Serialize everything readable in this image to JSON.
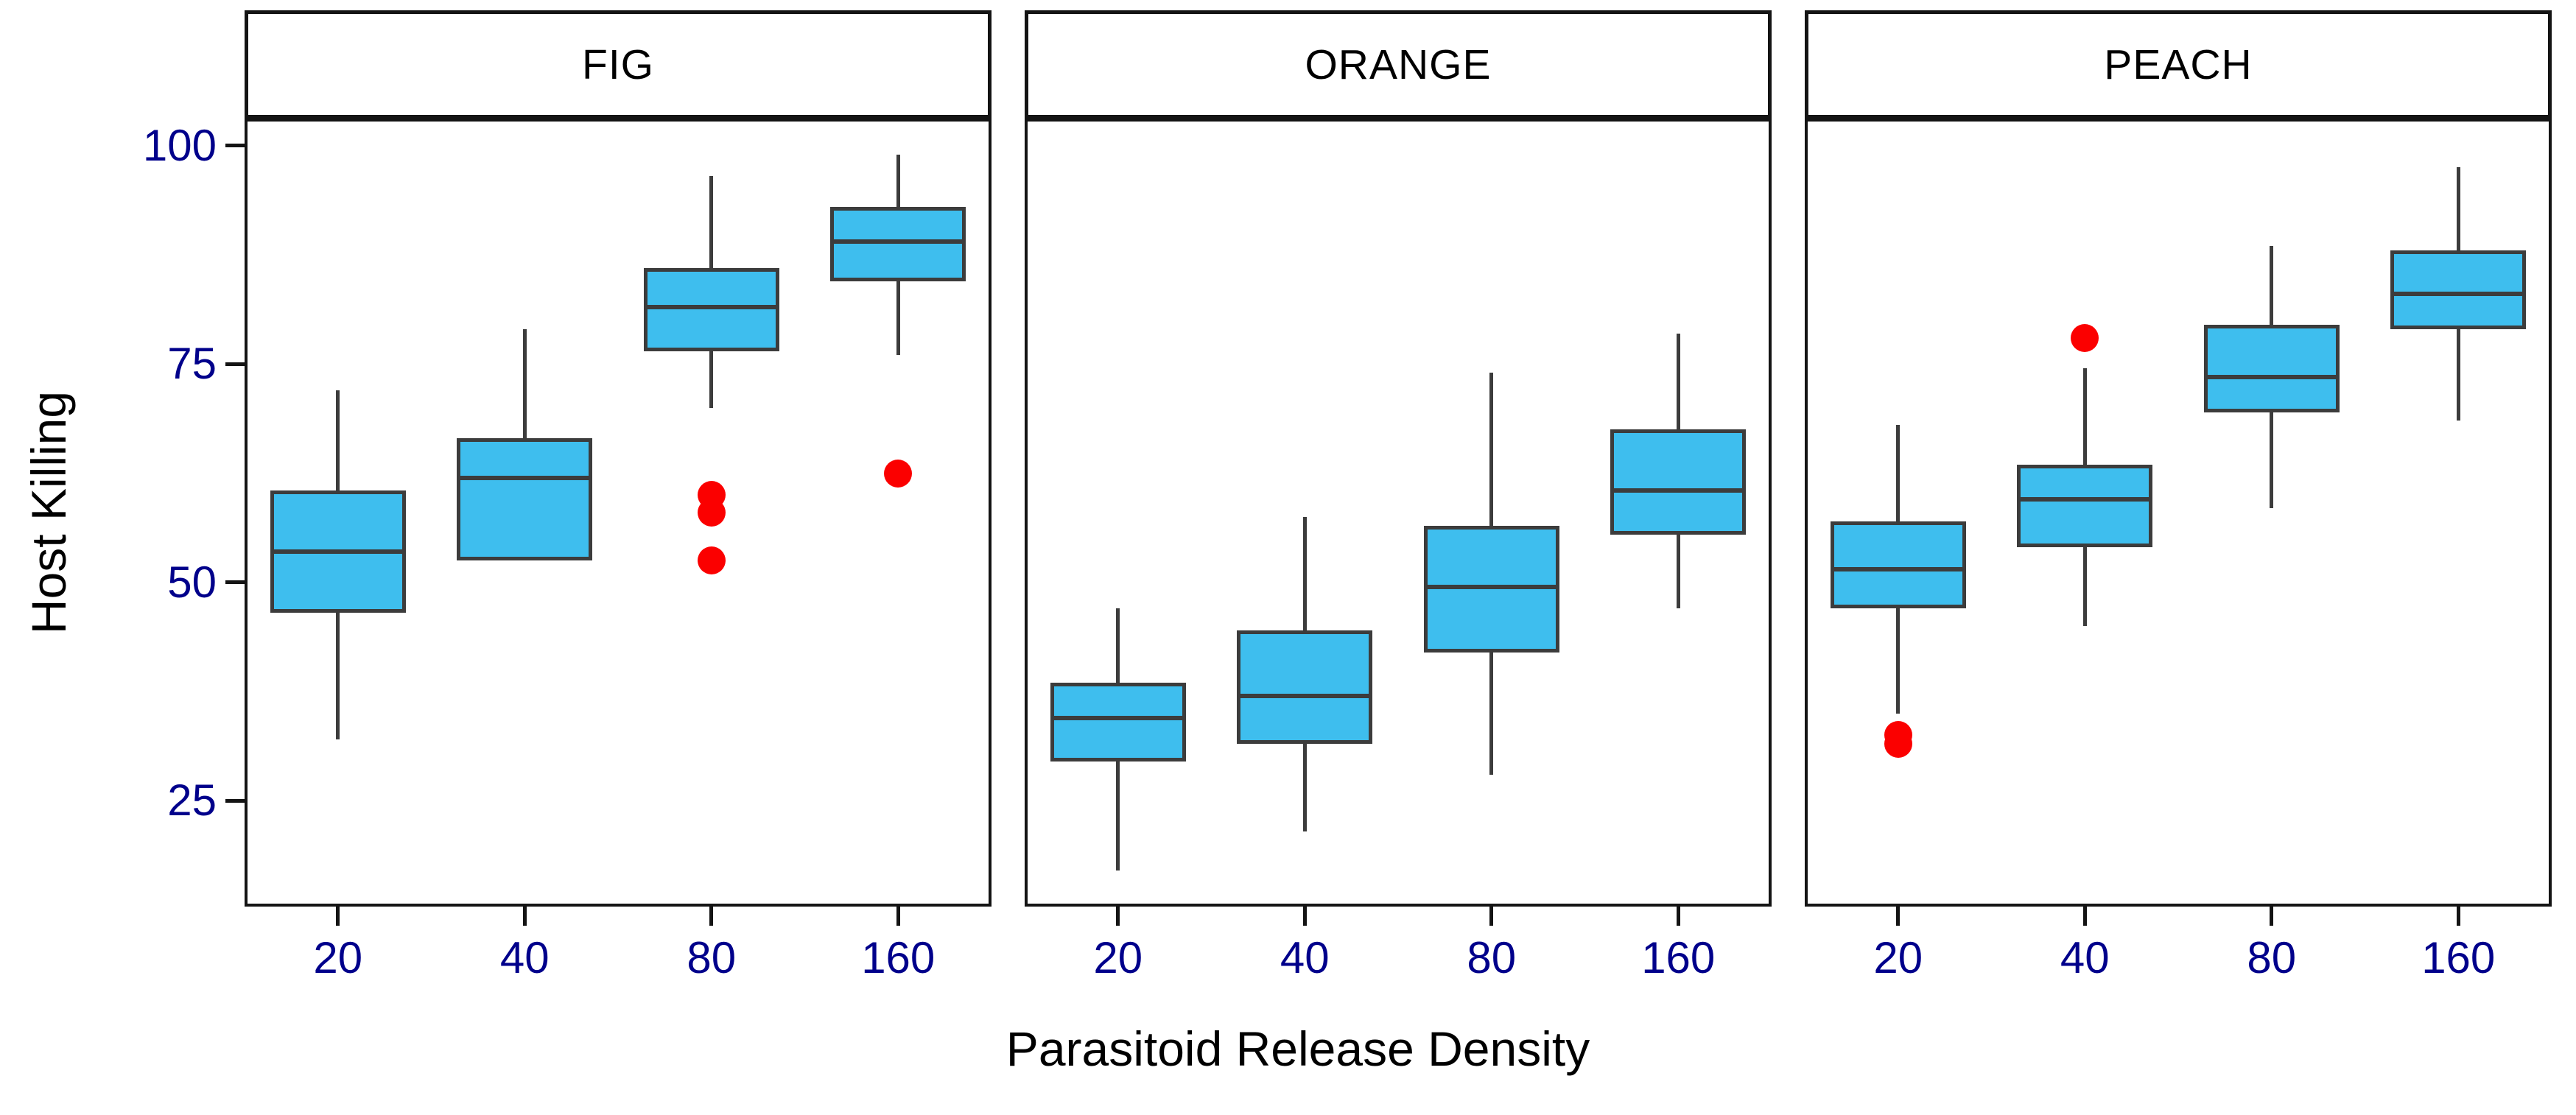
{
  "figure_title": "",
  "y_axis": {
    "label": "Host Killing",
    "tick_values": [
      100,
      75,
      50,
      25
    ],
    "domain_top": 103.1,
    "domain_bottom": 12.9
  },
  "x_axis": {
    "label": "Parasitoid Release Density",
    "tick_labels": [
      "20",
      "40",
      "80",
      "160"
    ]
  },
  "colors": {
    "box_fill": "#3EBEEE",
    "box_stroke": "#3c3c3c",
    "outlier_red": "#fb0000",
    "tick_label_blue": "#00008b",
    "panel_border": "#141414",
    "text_black": "#000000",
    "background": "#ffffff"
  },
  "chart_data": {
    "type": "boxplot",
    "title": "",
    "xlabel": "Parasitoid Release Density",
    "ylabel": "Host Killing",
    "ylim": [
      12.9,
      103.1
    ],
    "yticks": [
      25,
      50,
      75,
      100
    ],
    "categories": [
      "20",
      "40",
      "80",
      "160"
    ],
    "legend": null,
    "grid": false,
    "facets": [
      {
        "label": "FIG",
        "boxes": [
          {
            "category": "20",
            "min": 32,
            "q1": 46.5,
            "median": 53.5,
            "q3": 60.5,
            "max": 72,
            "outliers": []
          },
          {
            "category": "40",
            "min": 52.5,
            "q1": 52.5,
            "median": 62,
            "q3": 66.5,
            "max": 79,
            "outliers": []
          },
          {
            "category": "80",
            "min": 70,
            "q1": 76.5,
            "median": 81.5,
            "q3": 86,
            "max": 96.5,
            "outliers": [
              60,
              58,
              52.5
            ]
          },
          {
            "category": "160",
            "min": 76,
            "q1": 84.5,
            "median": 89,
            "q3": 93,
            "max": 99,
            "outliers": [
              62.5
            ]
          }
        ]
      },
      {
        "label": "ORANGE",
        "boxes": [
          {
            "category": "20",
            "min": 17,
            "q1": 29.5,
            "median": 34.5,
            "q3": 38.5,
            "max": 47,
            "outliers": []
          },
          {
            "category": "40",
            "min": 21.5,
            "q1": 31.5,
            "median": 37,
            "q3": 44.5,
            "max": 57.5,
            "outliers": []
          },
          {
            "category": "80",
            "min": 28,
            "q1": 42,
            "median": 49.5,
            "q3": 56.5,
            "max": 74,
            "outliers": []
          },
          {
            "category": "160",
            "min": 47,
            "q1": 55.5,
            "median": 60.5,
            "q3": 67.5,
            "max": 78.5,
            "outliers": []
          }
        ]
      },
      {
        "label": "PEACH",
        "boxes": [
          {
            "category": "20",
            "min": 35,
            "q1": 47,
            "median": 51.5,
            "q3": 57,
            "max": 68,
            "outliers": [
              32.5,
              31.5
            ]
          },
          {
            "category": "40",
            "min": 45,
            "q1": 54,
            "median": 59.5,
            "q3": 63.5,
            "max": 74.5,
            "outliers": [
              78
            ]
          },
          {
            "category": "80",
            "min": 58.5,
            "q1": 69.5,
            "median": 73.5,
            "q3": 79.5,
            "max": 88.5,
            "outliers": []
          },
          {
            "category": "160",
            "min": 68.5,
            "q1": 79,
            "median": 83,
            "q3": 88,
            "max": 97.5,
            "outliers": []
          }
        ]
      }
    ]
  }
}
